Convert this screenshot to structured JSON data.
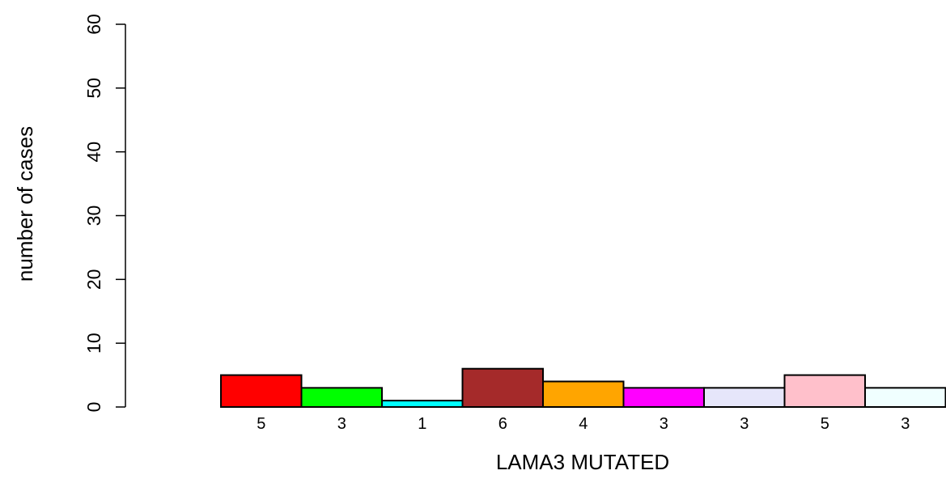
{
  "chart_data": {
    "type": "bar",
    "title": "",
    "xlabel": "LAMA3 MUTATED",
    "ylabel": "number of cases",
    "ylim": [
      0,
      60
    ],
    "yticks": [
      0,
      10,
      20,
      30,
      40,
      50,
      60
    ],
    "grid": false,
    "values": [
      5,
      3,
      1,
      6,
      4,
      3,
      3,
      5,
      3
    ],
    "bar_labels": [
      "5",
      "3",
      "1",
      "6",
      "4",
      "3",
      "3",
      "5",
      "3"
    ],
    "colors": [
      "#ff0000",
      "#00ff00",
      "#00ffff",
      "#a52a2a",
      "#ffa500",
      "#ff00ff",
      "#e6e6fa",
      "#ffc0cb",
      "#f0ffff"
    ]
  }
}
